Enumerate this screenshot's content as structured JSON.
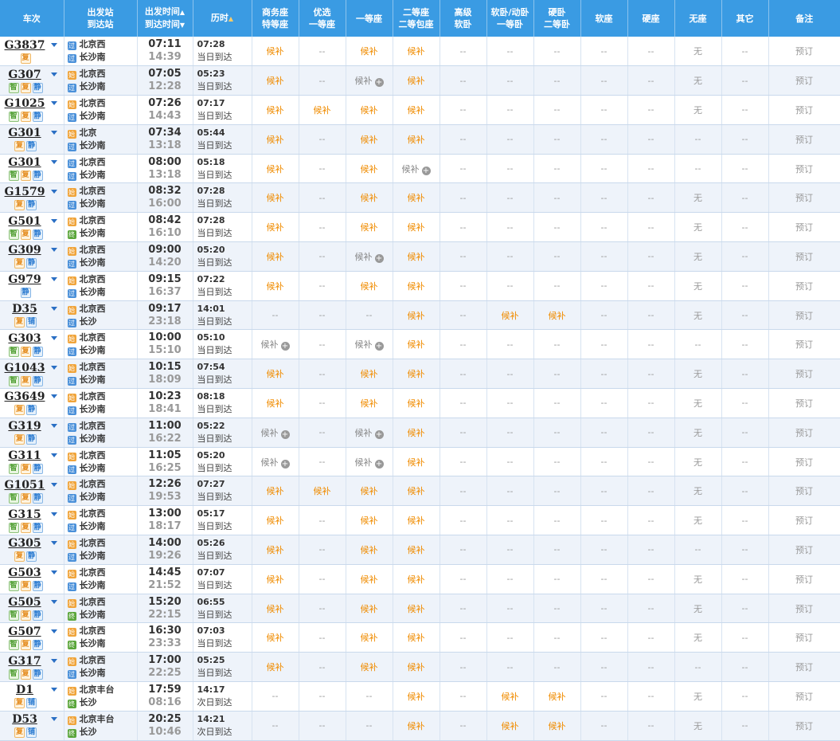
{
  "header": {
    "train": "车次",
    "station_from": "出发站",
    "station_to": "到达站",
    "dep_time": "出发时间",
    "arr_time": "到达时间",
    "duration": "历时",
    "business": [
      "商务座",
      "特等座"
    ],
    "premium": [
      "优选",
      "一等座"
    ],
    "first": "一等座",
    "second": [
      "二等座",
      "二等包座"
    ],
    "hsoft": [
      "高级",
      "软卧"
    ],
    "soft_sleeper": [
      "软卧/动卧",
      "一等卧"
    ],
    "hard_sleeper": [
      "硬卧",
      "二等卧"
    ],
    "soft_seat": "软座",
    "hard_seat": "硬座",
    "no_seat": "无座",
    "other": "其它",
    "remark": "备注"
  },
  "labels": {
    "houbu": "候补",
    "dash": "--",
    "none": "无",
    "book": "预订",
    "same_day": "当日到达",
    "next_day": "次日到达",
    "tag_zhi": "智",
    "tag_fu": "复",
    "tag_jing": "静",
    "tag_pu": "铺",
    "ic_shi": "始",
    "ic_guo": "过",
    "ic_zhong": "终",
    "plus": "+"
  },
  "colors": {
    "header": "#3a9be3",
    "houbu": "#f08c00",
    "row_alt": "#eef3fa"
  },
  "trains": [
    {
      "no": "G3837",
      "tags": [
        "fu"
      ],
      "from": "北京西",
      "fi": "guo",
      "to": "长沙南",
      "ti": "guo",
      "dep": "07:11",
      "arr": "14:39",
      "dur": "07:28",
      "day": "same_day",
      "seats": [
        "hb",
        "-",
        "hb",
        "hb",
        "-",
        "-",
        "-",
        "-",
        "-",
        "none",
        "-"
      ]
    },
    {
      "no": "G307",
      "tags": [
        "zhi",
        "fu",
        "jing"
      ],
      "from": "北京西",
      "fi": "shi",
      "to": "长沙南",
      "ti": "guo",
      "dep": "07:05",
      "arr": "12:28",
      "dur": "05:23",
      "day": "same_day",
      "seats": [
        "hb",
        "-",
        "hbd",
        "hb",
        "-",
        "-",
        "-",
        "-",
        "-",
        "none",
        "-"
      ]
    },
    {
      "no": "G1025",
      "tags": [
        "zhi",
        "fu",
        "jing"
      ],
      "from": "北京西",
      "fi": "shi",
      "to": "长沙南",
      "ti": "guo",
      "dep": "07:26",
      "arr": "14:43",
      "dur": "07:17",
      "day": "same_day",
      "seats": [
        "hb",
        "hb",
        "hb",
        "hb",
        "-",
        "-",
        "-",
        "-",
        "-",
        "none",
        "-"
      ]
    },
    {
      "no": "G301",
      "tags": [
        "fu",
        "jing"
      ],
      "from": "北京",
      "fi": "shi",
      "to": "长沙南",
      "ti": "guo",
      "dep": "07:34",
      "arr": "13:18",
      "dur": "05:44",
      "day": "same_day",
      "seats": [
        "hb",
        "-",
        "hb",
        "hb",
        "-",
        "-",
        "-",
        "-",
        "-",
        "-",
        "-"
      ]
    },
    {
      "no": "G301",
      "tags": [
        "zhi",
        "fu",
        "jing"
      ],
      "from": "北京西",
      "fi": "guo",
      "to": "长沙南",
      "ti": "guo",
      "dep": "08:00",
      "arr": "13:18",
      "dur": "05:18",
      "day": "same_day",
      "seats": [
        "hb",
        "-",
        "hb",
        "hbd",
        "-",
        "-",
        "-",
        "-",
        "-",
        "-",
        "-"
      ]
    },
    {
      "no": "G1579",
      "tags": [
        "fu",
        "jing"
      ],
      "from": "北京西",
      "fi": "shi",
      "to": "长沙南",
      "ti": "guo",
      "dep": "08:32",
      "arr": "16:00",
      "dur": "07:28",
      "day": "same_day",
      "seats": [
        "hb",
        "-",
        "hb",
        "hb",
        "-",
        "-",
        "-",
        "-",
        "-",
        "none",
        "-"
      ]
    },
    {
      "no": "G501",
      "tags": [
        "zhi",
        "fu",
        "jing"
      ],
      "from": "北京西",
      "fi": "shi",
      "to": "长沙南",
      "ti": "zhong",
      "dep": "08:42",
      "arr": "16:10",
      "dur": "07:28",
      "day": "same_day",
      "seats": [
        "hb",
        "-",
        "hb",
        "hb",
        "-",
        "-",
        "-",
        "-",
        "-",
        "none",
        "-"
      ]
    },
    {
      "no": "G309",
      "tags": [
        "fu",
        "jing"
      ],
      "from": "北京西",
      "fi": "shi",
      "to": "长沙南",
      "ti": "guo",
      "dep": "09:00",
      "arr": "14:20",
      "dur": "05:20",
      "day": "same_day",
      "seats": [
        "hb",
        "-",
        "hbd",
        "hb",
        "-",
        "-",
        "-",
        "-",
        "-",
        "none",
        "-"
      ]
    },
    {
      "no": "G979",
      "tags": [
        "jing"
      ],
      "from": "北京西",
      "fi": "shi",
      "to": "长沙南",
      "ti": "guo",
      "dep": "09:15",
      "arr": "16:37",
      "dur": "07:22",
      "day": "same_day",
      "seats": [
        "hb",
        "-",
        "hb",
        "hb",
        "-",
        "-",
        "-",
        "-",
        "-",
        "none",
        "-"
      ]
    },
    {
      "no": "D35",
      "tags": [
        "fu",
        "pu"
      ],
      "from": "北京西",
      "fi": "shi",
      "to": "长沙",
      "ti": "guo",
      "dep": "09:17",
      "arr": "23:18",
      "dur": "14:01",
      "day": "same_day",
      "seats": [
        "-",
        "-",
        "-",
        "hb",
        "-",
        "hb",
        "hb",
        "-",
        "-",
        "none",
        "-"
      ]
    },
    {
      "no": "G303",
      "tags": [
        "zhi",
        "fu",
        "jing"
      ],
      "from": "北京西",
      "fi": "shi",
      "to": "长沙南",
      "ti": "guo",
      "dep": "10:00",
      "arr": "15:10",
      "dur": "05:10",
      "day": "same_day",
      "seats": [
        "hbd",
        "-",
        "hbd",
        "hb",
        "-",
        "-",
        "-",
        "-",
        "-",
        "-",
        "-"
      ]
    },
    {
      "no": "G1043",
      "tags": [
        "zhi",
        "fu",
        "jing"
      ],
      "from": "北京西",
      "fi": "shi",
      "to": "长沙南",
      "ti": "guo",
      "dep": "10:15",
      "arr": "18:09",
      "dur": "07:54",
      "day": "same_day",
      "seats": [
        "hb",
        "-",
        "hb",
        "hb",
        "-",
        "-",
        "-",
        "-",
        "-",
        "none",
        "-"
      ]
    },
    {
      "no": "G3649",
      "tags": [
        "fu",
        "jing"
      ],
      "from": "北京西",
      "fi": "shi",
      "to": "长沙南",
      "ti": "guo",
      "dep": "10:23",
      "arr": "18:41",
      "dur": "08:18",
      "day": "same_day",
      "seats": [
        "hb",
        "-",
        "hb",
        "hb",
        "-",
        "-",
        "-",
        "-",
        "-",
        "none",
        "-"
      ]
    },
    {
      "no": "G319",
      "tags": [
        "fu",
        "jing"
      ],
      "from": "北京西",
      "fi": "guo",
      "to": "长沙南",
      "ti": "guo",
      "dep": "11:00",
      "arr": "16:22",
      "dur": "05:22",
      "day": "same_day",
      "seats": [
        "hbd",
        "-",
        "hbd",
        "hb",
        "-",
        "-",
        "-",
        "-",
        "-",
        "none",
        "-"
      ]
    },
    {
      "no": "G311",
      "tags": [
        "zhi",
        "fu",
        "jing"
      ],
      "from": "北京西",
      "fi": "shi",
      "to": "长沙南",
      "ti": "guo",
      "dep": "11:05",
      "arr": "16:25",
      "dur": "05:20",
      "day": "same_day",
      "seats": [
        "hbd",
        "-",
        "hbd",
        "hb",
        "-",
        "-",
        "-",
        "-",
        "-",
        "none",
        "-"
      ]
    },
    {
      "no": "G1051",
      "tags": [
        "zhi",
        "fu",
        "jing"
      ],
      "from": "北京西",
      "fi": "shi",
      "to": "长沙南",
      "ti": "guo",
      "dep": "12:26",
      "arr": "19:53",
      "dur": "07:27",
      "day": "same_day",
      "seats": [
        "hb",
        "hb",
        "hb",
        "hb",
        "-",
        "-",
        "-",
        "-",
        "-",
        "none",
        "-"
      ]
    },
    {
      "no": "G315",
      "tags": [
        "zhi",
        "fu",
        "jing"
      ],
      "from": "北京西",
      "fi": "shi",
      "to": "长沙南",
      "ti": "guo",
      "dep": "13:00",
      "arr": "18:17",
      "dur": "05:17",
      "day": "same_day",
      "seats": [
        "hb",
        "-",
        "hb",
        "hb",
        "-",
        "-",
        "-",
        "-",
        "-",
        "none",
        "-"
      ]
    },
    {
      "no": "G305",
      "tags": [
        "fu",
        "jing"
      ],
      "from": "北京西",
      "fi": "shi",
      "to": "长沙南",
      "ti": "guo",
      "dep": "14:00",
      "arr": "19:26",
      "dur": "05:26",
      "day": "same_day",
      "seats": [
        "hb",
        "-",
        "hb",
        "hb",
        "-",
        "-",
        "-",
        "-",
        "-",
        "-",
        "-"
      ]
    },
    {
      "no": "G503",
      "tags": [
        "zhi",
        "fu",
        "jing"
      ],
      "from": "北京西",
      "fi": "shi",
      "to": "长沙南",
      "ti": "guo",
      "dep": "14:45",
      "arr": "21:52",
      "dur": "07:07",
      "day": "same_day",
      "seats": [
        "hb",
        "-",
        "hb",
        "hb",
        "-",
        "-",
        "-",
        "-",
        "-",
        "none",
        "-"
      ]
    },
    {
      "no": "G505",
      "tags": [
        "zhi",
        "fu",
        "jing"
      ],
      "from": "北京西",
      "fi": "shi",
      "to": "长沙南",
      "ti": "zhong",
      "dep": "15:20",
      "arr": "22:15",
      "dur": "06:55",
      "day": "same_day",
      "seats": [
        "hb",
        "-",
        "hb",
        "hb",
        "-",
        "-",
        "-",
        "-",
        "-",
        "none",
        "-"
      ]
    },
    {
      "no": "G507",
      "tags": [
        "zhi",
        "fu",
        "jing"
      ],
      "from": "北京西",
      "fi": "shi",
      "to": "长沙南",
      "ti": "zhong",
      "dep": "16:30",
      "arr": "23:33",
      "dur": "07:03",
      "day": "same_day",
      "seats": [
        "hb",
        "-",
        "hb",
        "hb",
        "-",
        "-",
        "-",
        "-",
        "-",
        "none",
        "-"
      ]
    },
    {
      "no": "G317",
      "tags": [
        "zhi",
        "fu",
        "jing"
      ],
      "from": "北京西",
      "fi": "shi",
      "to": "长沙南",
      "ti": "guo",
      "dep": "17:00",
      "arr": "22:25",
      "dur": "05:25",
      "day": "same_day",
      "seats": [
        "hb",
        "-",
        "hb",
        "hb",
        "-",
        "-",
        "-",
        "-",
        "-",
        "-",
        "-"
      ]
    },
    {
      "no": "D1",
      "tags": [
        "fu",
        "pu"
      ],
      "from": "北京丰台",
      "fi": "shi",
      "to": "长沙",
      "ti": "zhong",
      "dep": "17:59",
      "arr": "08:16",
      "dur": "14:17",
      "day": "next_day",
      "seats": [
        "-",
        "-",
        "-",
        "hb",
        "-",
        "hb",
        "hb",
        "-",
        "-",
        "none",
        "-"
      ]
    },
    {
      "no": "D53",
      "tags": [
        "fu",
        "pu"
      ],
      "from": "北京丰台",
      "fi": "shi",
      "to": "长沙",
      "ti": "zhong",
      "dep": "20:25",
      "arr": "10:46",
      "dur": "14:21",
      "day": "next_day",
      "seats": [
        "-",
        "-",
        "-",
        "hb",
        "-",
        "hb",
        "hb",
        "-",
        "-",
        "none",
        "-"
      ]
    }
  ]
}
